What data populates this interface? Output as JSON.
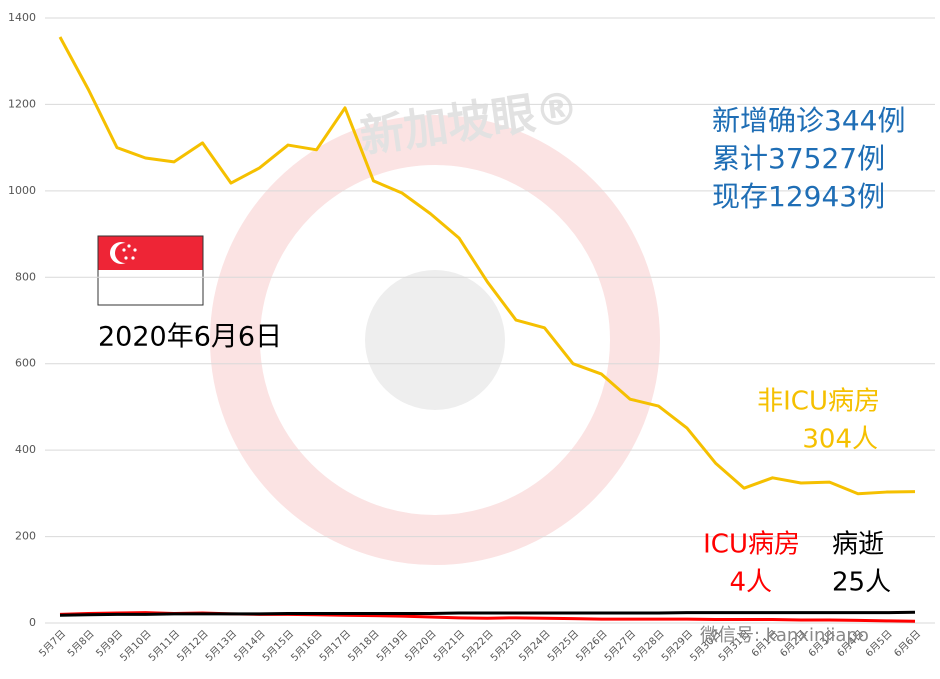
{
  "chart_data": {
    "type": "line",
    "categories": [
      "5月7日",
      "5月8日",
      "5月9日",
      "5月10日",
      "5月11日",
      "5月12日",
      "5月13日",
      "5月14日",
      "5月15日",
      "5月16日",
      "5月17日",
      "5月18日",
      "5月19日",
      "5月20日",
      "5月21日",
      "5月22日",
      "5月23日",
      "5月24日",
      "5月25日",
      "5月26日",
      "5月27日",
      "5月28日",
      "5月29日",
      "5月30日",
      "5月31日",
      "6月1日",
      "6月2日",
      "6月3日",
      "6月4日",
      "6月5日",
      "6月6日"
    ],
    "series": [
      {
        "name": "非ICU病房",
        "color": "#f5c000",
        "values": [
          1356,
          1234,
          1100,
          1076,
          1067,
          1111,
          1018,
          1053,
          1106,
          1095,
          1192,
          1023,
          995,
          947,
          891,
          789,
          701,
          683,
          600,
          576,
          518,
          502,
          451,
          370,
          312,
          336,
          324,
          326,
          299,
          303,
          304
        ],
        "value_labels": [
          null,
          null,
          null,
          null,
          null,
          null,
          null,
          null,
          null,
          null,
          null,
          null,
          null,
          null,
          null,
          null,
          null,
          null,
          null,
          null,
          null,
          null,
          null,
          null,
          null,
          null,
          null,
          null,
          null,
          null,
          "304人"
        ]
      },
      {
        "name": "ICU病房",
        "color": "#ff0000",
        "values": [
          20,
          22,
          23,
          24,
          22,
          23,
          21,
          20,
          20,
          19,
          18,
          17,
          16,
          14,
          12,
          11,
          12,
          11,
          10,
          9,
          9,
          9,
          9,
          8,
          8,
          8,
          7,
          7,
          6,
          5,
          4
        ],
        "value_labels": [
          null,
          null,
          null,
          null,
          null,
          null,
          null,
          null,
          null,
          null,
          null,
          null,
          null,
          null,
          null,
          null,
          null,
          null,
          null,
          null,
          null,
          null,
          null,
          null,
          null,
          null,
          null,
          null,
          null,
          null,
          "4人"
        ]
      },
      {
        "name": "病逝",
        "color": "#000000",
        "values": [
          18,
          19,
          20,
          20,
          21,
          21,
          21,
          21,
          22,
          22,
          22,
          22,
          22,
          22,
          23,
          23,
          23,
          23,
          23,
          23,
          23,
          23,
          24,
          24,
          24,
          24,
          24,
          24,
          24,
          24,
          25
        ],
        "value_labels": [
          null,
          null,
          null,
          null,
          null,
          null,
          null,
          null,
          null,
          null,
          null,
          null,
          null,
          null,
          null,
          null,
          null,
          null,
          null,
          null,
          null,
          null,
          null,
          null,
          null,
          null,
          null,
          null,
          null,
          null,
          "25人"
        ]
      }
    ],
    "ylim": [
      0,
      1400
    ],
    "yticks": [
      0,
      200,
      400,
      600,
      800,
      1000,
      1200,
      1400
    ],
    "grid": true,
    "annotations": [
      "新增确诊344例",
      "累计37527例",
      "现存12943例",
      "2020年6月6日"
    ],
    "watermark": [
      "新加坡眼®",
      "微信号: kanxinjiapo"
    ]
  }
}
